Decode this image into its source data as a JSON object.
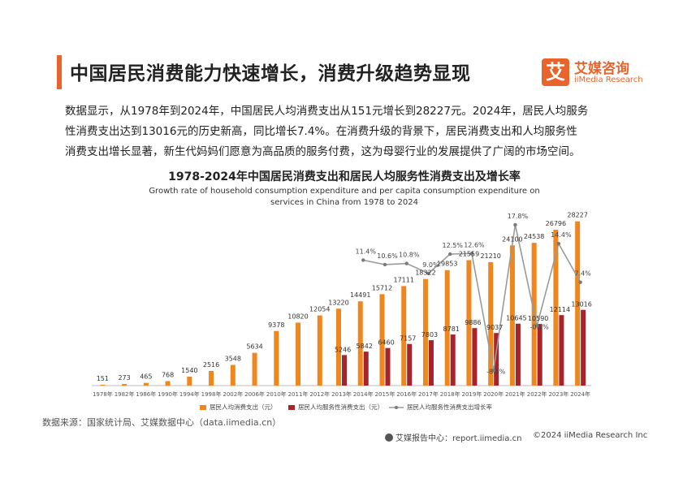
{
  "header": {
    "title": "中国居民消费能力快速增长，消费升级趋势显现",
    "logo_mark": "艾",
    "logo_cn": "艾媒咨询",
    "logo_en": "iiMedia Research"
  },
  "summary": {
    "line1": "数据显示，从1978年到2024年，中国居民人均消费支出从151元增长到28227元。2024年，居民人均服务",
    "line2": "性消费支出达到13016元的历史新高，同比增长7.4%。在消费升级的背景下，居民消费支出和人均服务性",
    "line3": "消费支出增长显著，新生代妈妈们愿意为高品质的服务付费，这为母婴行业的发展提供了广阔的市场空间。"
  },
  "chart_data": {
    "type": "bar",
    "title": "1978-2024年中国居民消费支出和居民人均服务性消费支出及增长率",
    "subtitle_line1": "Growth rate of household consumption expenditure and per capita consumption expenditure on",
    "subtitle_line2": "services in China from 1978 to 2024",
    "categories": [
      "1978年",
      "1982年",
      "1986年",
      "1990年",
      "1994年",
      "1998年",
      "2002年",
      "2006年",
      "2010年",
      "2011年",
      "2012年",
      "2013年",
      "2014年",
      "2015年",
      "2016年",
      "2017年",
      "2018年",
      "2019年",
      "2020年",
      "2021年",
      "2022年",
      "2023年",
      "2024年"
    ],
    "series": [
      {
        "name": "居民人均消费支出（元）",
        "color": "#f0861e",
        "values": [
          151,
          273,
          465,
          768,
          1540,
          2516,
          3548,
          5634,
          9378,
          10820,
          12054,
          13220,
          14491,
          15712,
          17111,
          18322,
          19853,
          21559,
          21210,
          24100,
          24538,
          26796,
          28227
        ]
      },
      {
        "name": "居民人均服务性消费支出（元）",
        "color": "#a8242c",
        "values": [
          null,
          null,
          null,
          null,
          null,
          null,
          null,
          null,
          null,
          null,
          null,
          5246,
          5842,
          6460,
          7157,
          7803,
          8781,
          9886,
          9037,
          10645,
          10590,
          12114,
          13016
        ]
      },
      {
        "name": "居民人均服务性消费支出增长率",
        "color": "#9a9a9a",
        "kind": "line",
        "values": [
          null,
          null,
          null,
          null,
          null,
          null,
          null,
          null,
          null,
          null,
          null,
          null,
          11.4,
          10.6,
          10.8,
          9.0,
          12.5,
          12.6,
          -8.6,
          17.8,
          -0.5,
          14.4,
          7.4
        ],
        "labels": [
          null,
          null,
          null,
          null,
          null,
          null,
          null,
          null,
          null,
          null,
          null,
          null,
          "11.4%",
          "10.6%",
          "10.8%",
          "9.0%",
          "12.5%",
          "12.6%",
          "-8.6%",
          "17.8%",
          "-0.5%",
          "14.4%",
          "7.4%"
        ]
      }
    ],
    "ylim": [
      0,
      30000
    ],
    "y2lim": [
      -10,
      20
    ],
    "grid": false,
    "legend_position": "bottom"
  },
  "footer": {
    "source": "数据来源：国家统计局、艾媒数据中心（data.iimedia.cn）",
    "report": "艾媒报告中心：report.iimedia.cn",
    "copyright": "©2024  iiMedia Research  Inc"
  }
}
